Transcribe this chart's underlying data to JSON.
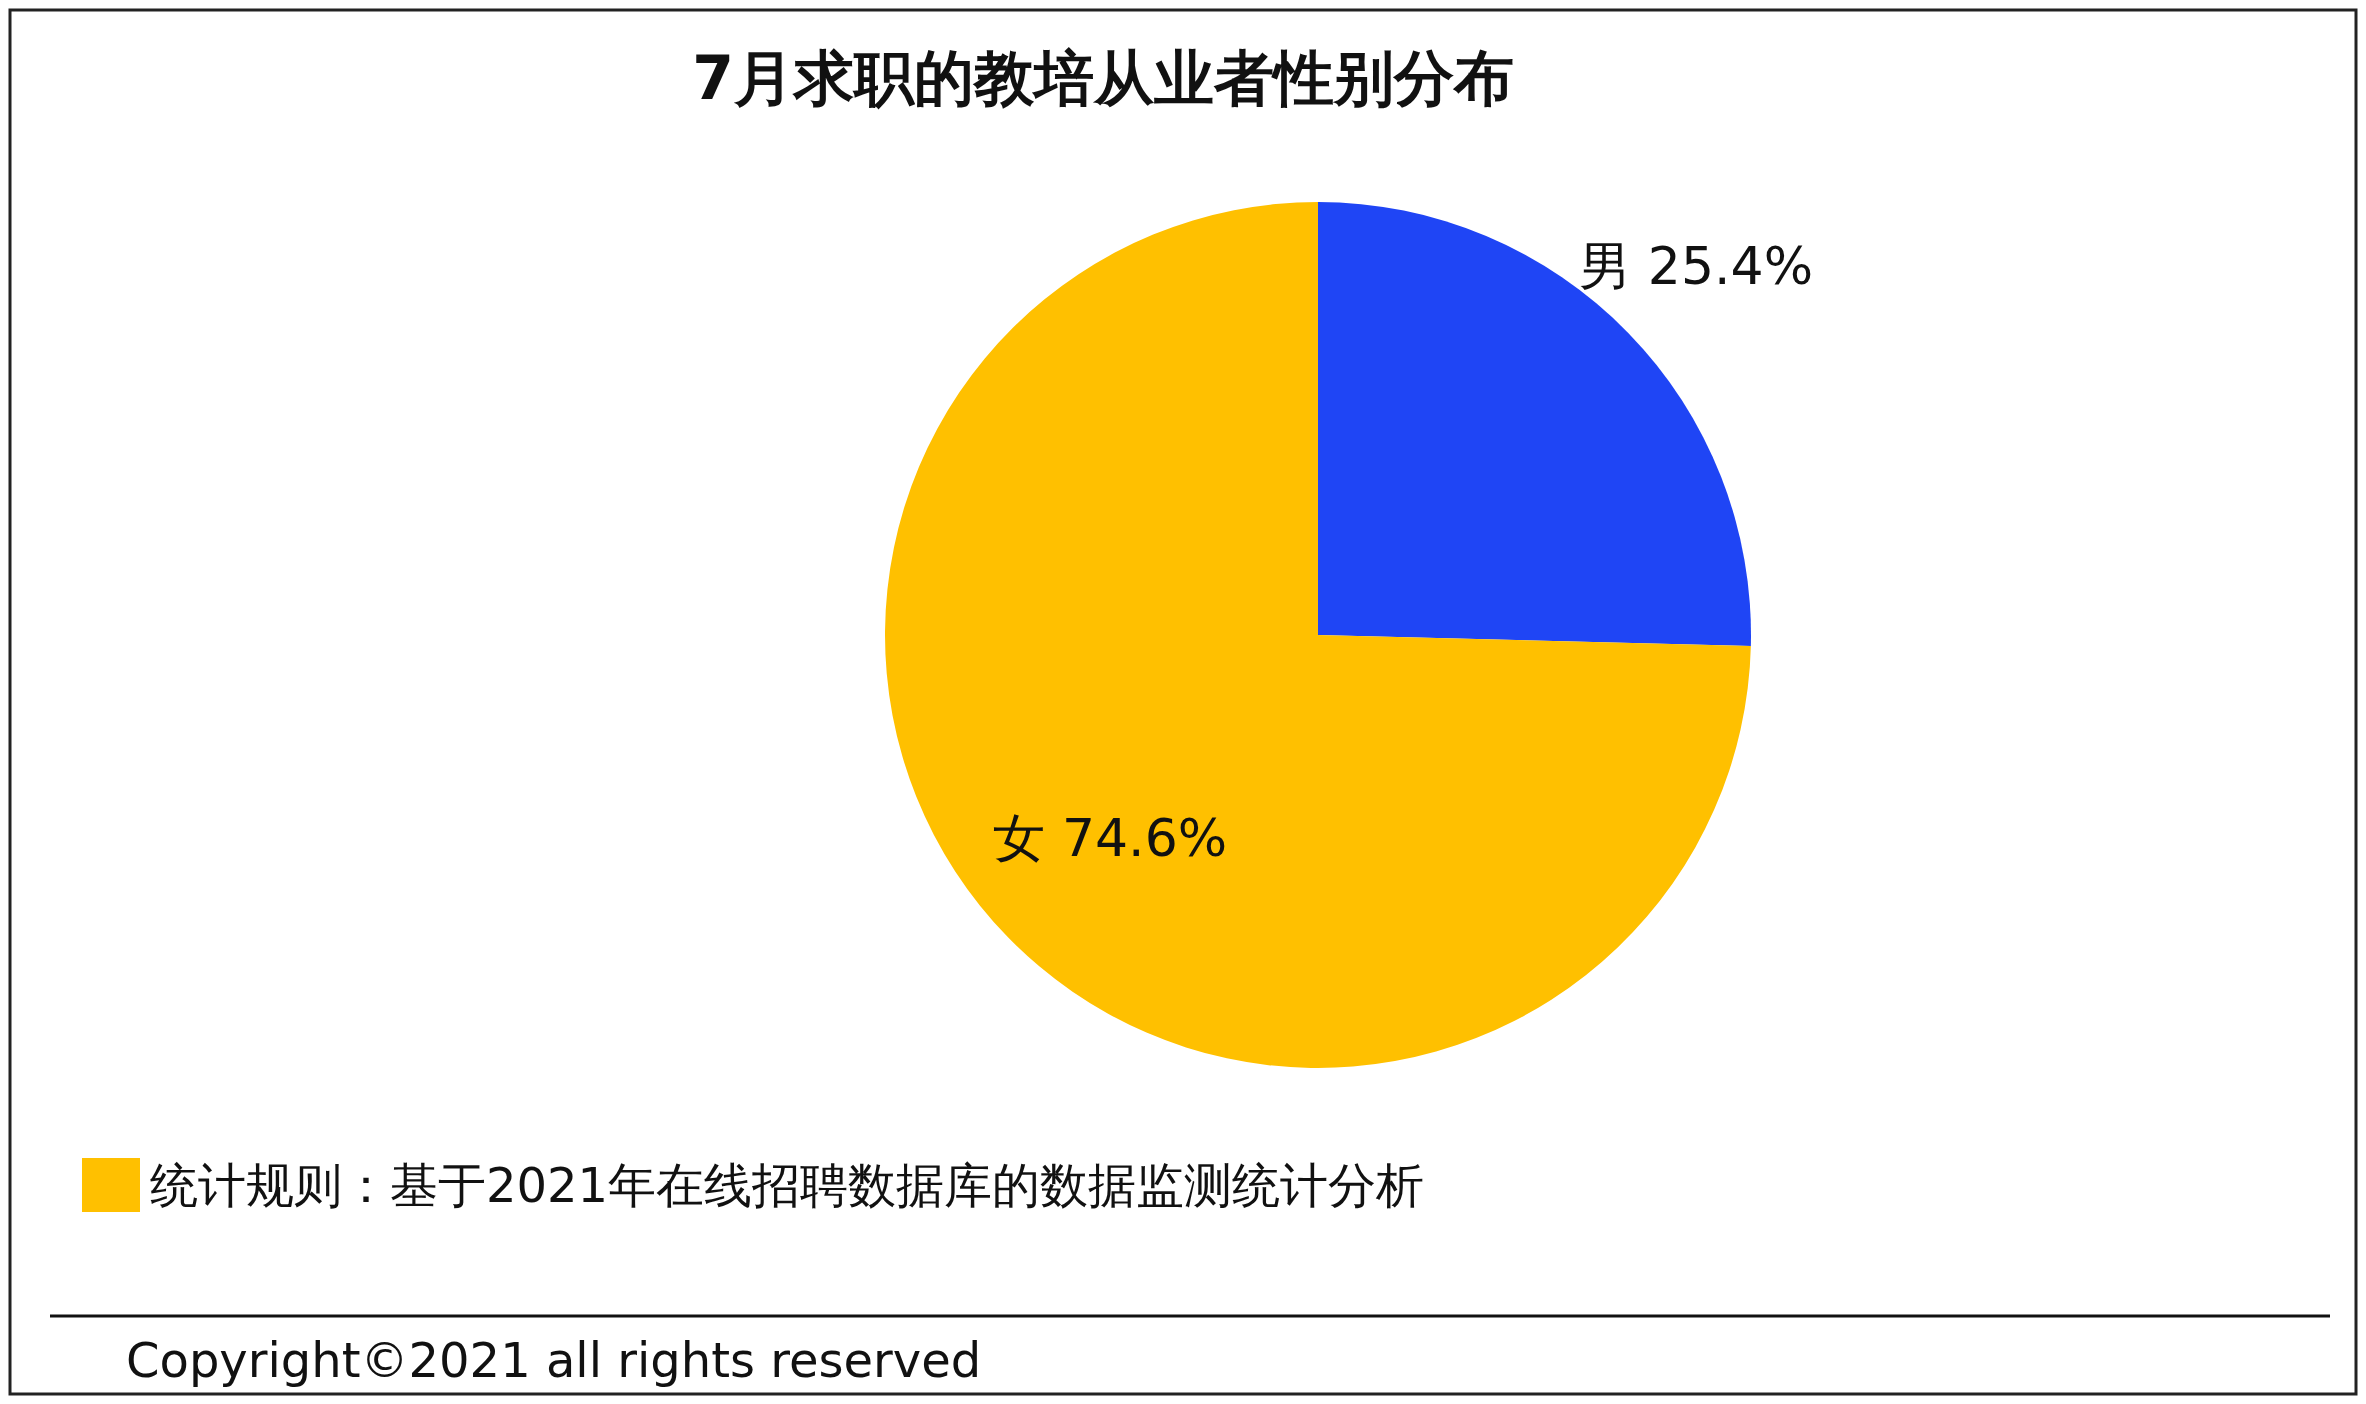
{
  "chart_data": {
    "type": "pie",
    "title": "7月求职的教培从业者性别分布",
    "categories": [
      "男",
      "女"
    ],
    "values": [
      25.4,
      74.6
    ],
    "value_labels": [
      "25.4%",
      "74.6%"
    ],
    "colors": [
      "#1f45f5",
      "#ffc000"
    ],
    "annotations": [
      "统计规则：基于2021年在线招聘数据库的数据监测统计分析",
      "Copyright©2021 all rights reserved"
    ]
  }
}
